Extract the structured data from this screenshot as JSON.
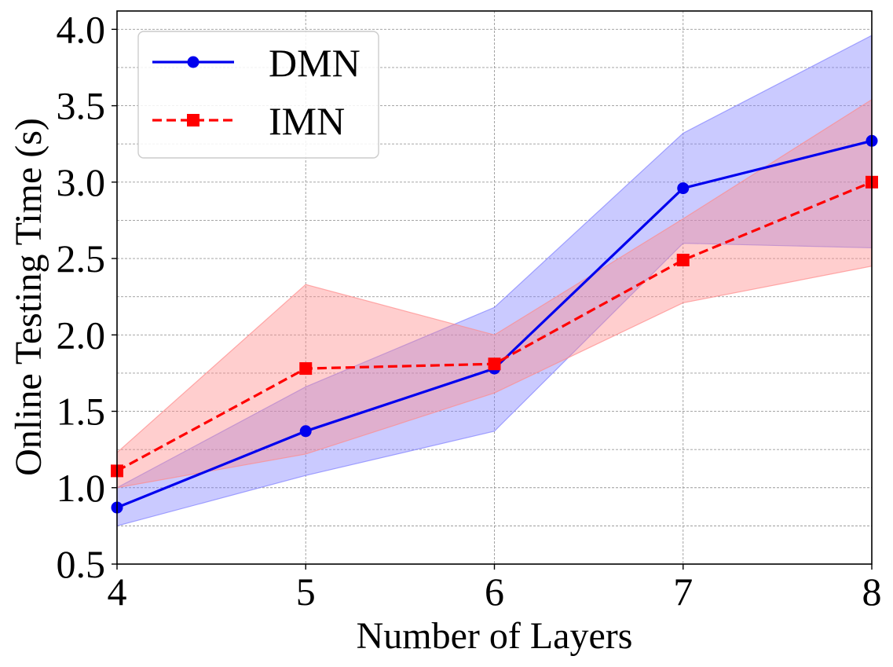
{
  "chart_data": {
    "type": "line",
    "title": "",
    "xlabel": "Number of Layers",
    "ylabel": "Online Testing Time (s)",
    "x": [
      4,
      5,
      6,
      7,
      8
    ],
    "x_ticks": [
      "4",
      "5",
      "6",
      "7",
      "8"
    ],
    "y_ticks": [
      "0.5",
      "1.0",
      "1.5",
      "2.0",
      "2.5",
      "3.0",
      "3.5",
      "4.0"
    ],
    "y_tick_values": [
      0.5,
      1.0,
      1.5,
      2.0,
      2.5,
      3.0,
      3.5,
      4.0
    ],
    "y_minor_grid": [
      0.75,
      1.25,
      1.75,
      2.25,
      2.75,
      3.25,
      3.75
    ],
    "xlim": [
      4,
      8
    ],
    "ylim": [
      0.5,
      4.12
    ],
    "grid": true,
    "legend_position": "top-left",
    "series": [
      {
        "name": "DMN",
        "color": "#0000ee",
        "band_color": "#8080ff",
        "line_style": "solid",
        "marker": "circle",
        "values": [
          0.87,
          1.37,
          1.78,
          2.96,
          3.27
        ],
        "band_lower": [
          0.75,
          1.08,
          1.37,
          2.6,
          2.57
        ],
        "band_upper": [
          1.0,
          1.66,
          2.18,
          3.32,
          3.96
        ]
      },
      {
        "name": "IMN",
        "color": "#ff0000",
        "band_color": "#ff8a8a",
        "line_style": "dashed",
        "marker": "square",
        "values": [
          1.11,
          1.78,
          1.81,
          2.49,
          3.0
        ],
        "band_lower": [
          1.0,
          1.22,
          1.62,
          2.21,
          2.45
        ],
        "band_upper": [
          1.23,
          2.33,
          2.0,
          2.76,
          3.54
        ]
      }
    ]
  }
}
